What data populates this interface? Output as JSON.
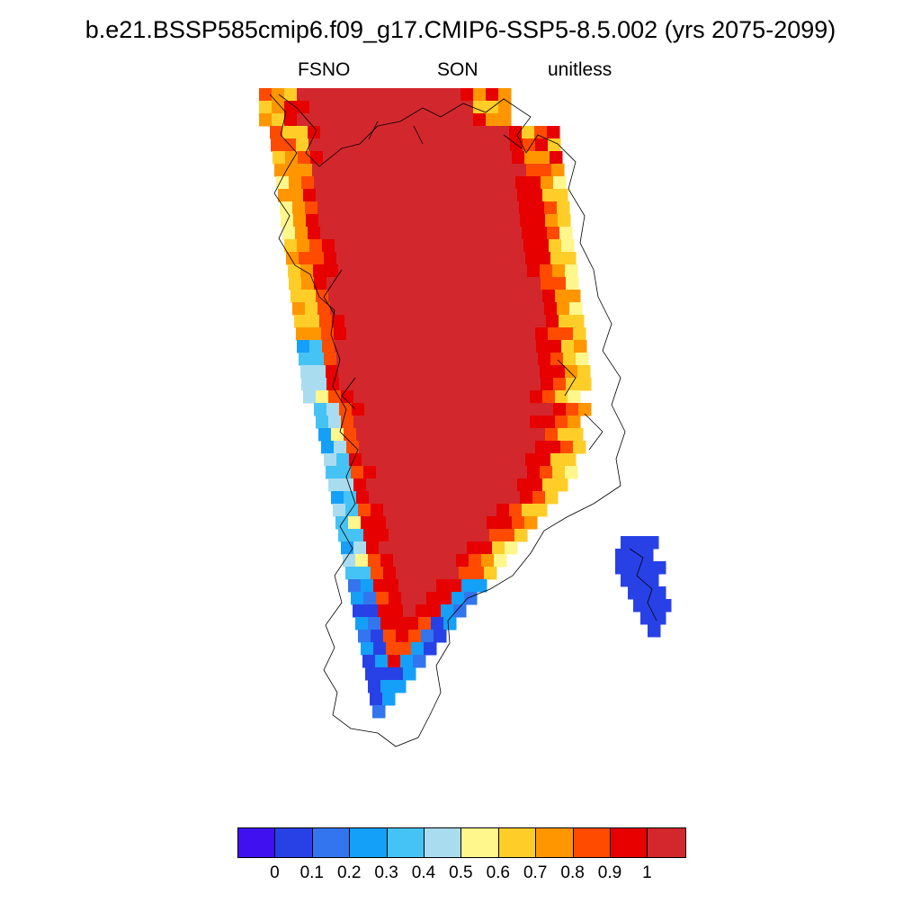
{
  "title": "b.e21.BSSP585cmip6.f09_g17.CMIP6-SSP5-8.5.002 (yrs 2075-2099)",
  "variable": "FSNO",
  "season": "SON",
  "units": "unitless",
  "map": {
    "region": "Greenland",
    "field": "fractional snow cover",
    "outline": "coastline"
  },
  "colorbar": {
    "colors": [
      "#4010f0",
      "#2841e6",
      "#3275ee",
      "#14a0f8",
      "#46c3f5",
      "#aadcf0",
      "#fff68c",
      "#ffcd28",
      "#ff9600",
      "#ff4b00",
      "#e60000",
      "#d2282d"
    ],
    "tick_labels": [
      "0",
      "0.1",
      "0.2",
      "0.3",
      "0.4",
      "0.5",
      "0.6",
      "0.7",
      "0.8",
      "0.9",
      "1"
    ]
  }
}
